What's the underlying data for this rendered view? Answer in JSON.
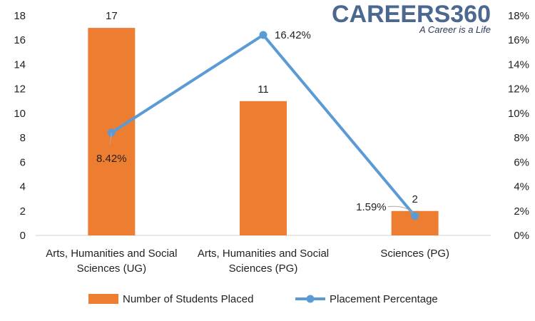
{
  "chart_data": {
    "type": "bar+line",
    "categories": [
      [
        "Arts, Humanities and Social",
        "Sciences (UG)"
      ],
      [
        "Arts, Humanities and Social",
        "Sciences (PG)"
      ],
      [
        "Sciences (PG)"
      ]
    ],
    "series": [
      {
        "name": "Number of Students Placed",
        "type": "bar",
        "axis": "left",
        "color": "#ED7D31",
        "values": [
          17,
          11,
          2
        ],
        "labels": [
          "17",
          "11",
          "2"
        ]
      },
      {
        "name": "Placement Percentage",
        "type": "line",
        "axis": "right",
        "color": "#5B9BD5",
        "values": [
          8.42,
          16.42,
          1.59
        ],
        "labels": [
          "8.42%",
          "16.42%",
          "1.59%"
        ]
      }
    ],
    "ylim_left": [
      0,
      18
    ],
    "ylim_right": [
      0,
      18
    ],
    "left_ticks": [
      "0",
      "2",
      "4",
      "6",
      "8",
      "10",
      "12",
      "14",
      "16",
      "18"
    ],
    "right_ticks": [
      "0%",
      "2%",
      "4%",
      "6%",
      "8%",
      "10%",
      "12%",
      "14%",
      "16%",
      "18%"
    ],
    "grid": false,
    "legend_position": "bottom"
  },
  "logo": {
    "name": "CAREERS360",
    "tagline": "A Career is a Life"
  }
}
